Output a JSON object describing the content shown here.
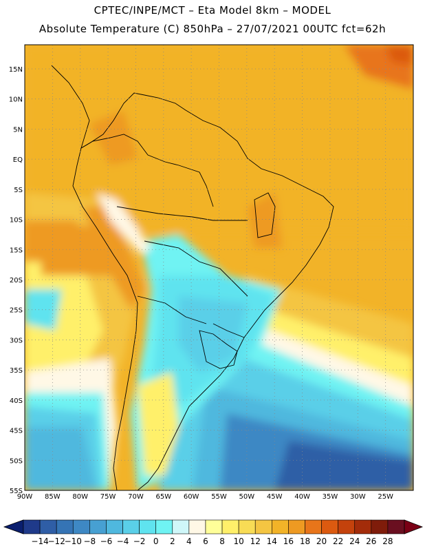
{
  "header": {
    "line1": "CPTEC/INPE/MCT –  Eta Model 8km – MODEL",
    "line2": "Absolute Temperature (C) 850hPa – 27/07/2021 00UTC fct=62h"
  },
  "map": {
    "lon_range": [
      -90,
      -20
    ],
    "lat_range": [
      -55,
      19
    ],
    "lon_ticks": [
      "90W",
      "85W",
      "80W",
      "75W",
      "70W",
      "65W",
      "60W",
      "55W",
      "50W",
      "45W",
      "40W",
      "35W",
      "30W",
      "25W"
    ],
    "lat_ticks": [
      "15N",
      "10N",
      "5N",
      "EQ",
      "5S",
      "10S",
      "15S",
      "20S",
      "25S",
      "30S",
      "35S",
      "40S",
      "45S",
      "50S",
      "55S"
    ],
    "grid": true
  },
  "colorbar": {
    "labels": [
      "−14",
      "−12",
      "−10",
      "−8",
      "−6",
      "−4",
      "−2",
      "0",
      "2",
      "4",
      "6",
      "8",
      "10",
      "12",
      "14",
      "16",
      "18",
      "20",
      "22",
      "24",
      "26",
      "28"
    ],
    "colors": [
      "#1f3a8a",
      "#2f5ea6",
      "#3574b5",
      "#3e88c4",
      "#47a0d2",
      "#4fb8de",
      "#5acfe8",
      "#5fe3ef",
      "#6ff3f3",
      "#cff7f9",
      "#fff8e6",
      "#ffff99",
      "#fff06a",
      "#f8dc55",
      "#f4c542",
      "#f2b328",
      "#ee9a22",
      "#e8751a",
      "#dc5a10",
      "#c4420c",
      "#a32c0a",
      "#7f1c0a",
      "#6a0f20"
    ],
    "under_color": "#0a1e6e",
    "over_color": "#7a0015"
  }
}
